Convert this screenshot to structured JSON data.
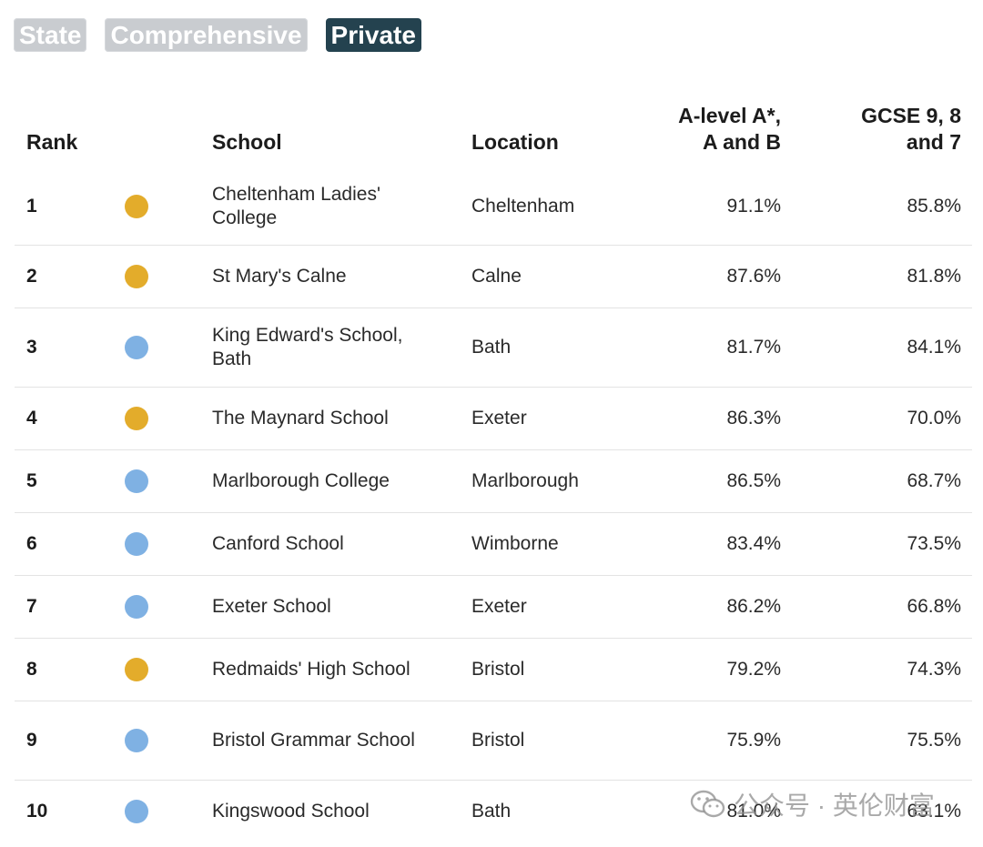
{
  "filters": [
    {
      "label": "State",
      "active": false
    },
    {
      "label": "Comprehensive",
      "active": false
    },
    {
      "label": "Private",
      "active": true
    }
  ],
  "table": {
    "headers": {
      "rank": "Rank",
      "school": "School",
      "location": "Location",
      "alevel": [
        "A-level A*,",
        "A and B"
      ],
      "gcse": [
        "GCSE 9, 8",
        "and 7"
      ]
    },
    "rows": [
      {
        "rank": "1",
        "type": "gold",
        "school": "Cheltenham Ladies' College",
        "location": "Cheltenham",
        "alevel": "91.1%",
        "gcse": "85.8%"
      },
      {
        "rank": "2",
        "type": "gold",
        "school": "St Mary's Calne",
        "location": "Calne",
        "alevel": "87.6%",
        "gcse": "81.8%"
      },
      {
        "rank": "3",
        "type": "blue",
        "school": "King Edward's School, Bath",
        "location": "Bath",
        "alevel": "81.7%",
        "gcse": "84.1%"
      },
      {
        "rank": "4",
        "type": "gold",
        "school": "The Maynard School",
        "location": "Exeter",
        "alevel": "86.3%",
        "gcse": "70.0%"
      },
      {
        "rank": "5",
        "type": "blue",
        "school": "Marlborough College",
        "location": "Marlborough",
        "alevel": "86.5%",
        "gcse": "68.7%"
      },
      {
        "rank": "6",
        "type": "blue",
        "school": "Canford School",
        "location": "Wimborne",
        "alevel": "83.4%",
        "gcse": "73.5%"
      },
      {
        "rank": "7",
        "type": "blue",
        "school": "Exeter School",
        "location": "Exeter",
        "alevel": "86.2%",
        "gcse": "66.8%"
      },
      {
        "rank": "8",
        "type": "gold",
        "school": "Redmaids' High School",
        "location": "Bristol",
        "alevel": "79.2%",
        "gcse": "74.3%"
      },
      {
        "rank": "9",
        "type": "blue",
        "school": "Bristol Grammar School",
        "location": "Bristol",
        "alevel": "75.9%",
        "gcse": "75.5%"
      },
      {
        "rank": "10",
        "type": "blue",
        "school": "Kingswood School",
        "location": "Bath",
        "alevel": "81.0%",
        "gcse": "63.1%"
      }
    ]
  },
  "colors": {
    "gold": "#e3ac2b",
    "blue": "#7fb1e3",
    "active_filter": "#24424f",
    "inactive_filter": "#c9ccd0"
  },
  "watermark": {
    "icon": "wechat-icon",
    "text": "公众号 · 英伦财富"
  }
}
